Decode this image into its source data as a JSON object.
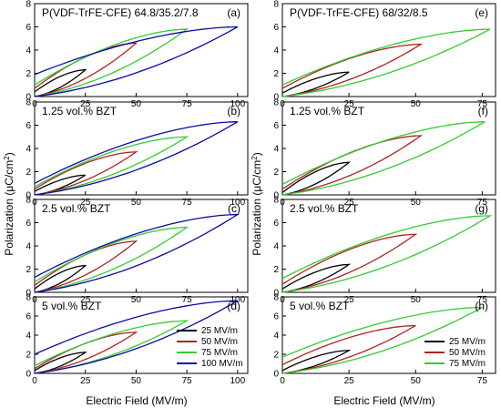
{
  "figure": {
    "ylabel": "Polarization (μC/cm²)",
    "xlabel": "Electric Field (MV/m)",
    "ylabel_html": "Polarization (μC/cm<tspan baseline-shift='super' font-size='8'>2</tspan>)"
  },
  "colors": {
    "25": "#000000",
    "50": "#b22222",
    "75": "#33cc33",
    "100": "#0a0aa8"
  },
  "chart_data": [
    {
      "type": "line",
      "label": "(a)",
      "title": "P(VDF-TrFE-CFE) 64.8/35.2/7.8",
      "xlim": [
        0,
        105
      ],
      "ylim": [
        0,
        8
      ],
      "xticks": [
        0,
        25,
        50,
        75,
        100
      ],
      "yticks": [
        0,
        2,
        4,
        6,
        8
      ],
      "series": [
        {
          "name": "25 MV/m",
          "field": 25,
          "pmax": 2.3,
          "pr": 0.4
        },
        {
          "name": "50 MV/m",
          "field": 50,
          "pmax": 4.6,
          "pr": 0.7
        },
        {
          "name": "75 MV/m",
          "field": 75,
          "pmax": 5.8,
          "pr": 1.0
        },
        {
          "name": "100 MV/m",
          "field": 100,
          "pmax": 6.0,
          "pr": 1.9
        }
      ]
    },
    {
      "type": "line",
      "label": "(b)",
      "title": "1.25 vol.% BZT",
      "xlim": [
        0,
        105
      ],
      "ylim": [
        0,
        8
      ],
      "xticks": [
        0,
        25,
        50,
        75,
        100
      ],
      "yticks": [
        0,
        2,
        4,
        6,
        8
      ],
      "series": [
        {
          "name": "25 MV/m",
          "field": 25,
          "pmax": 1.7,
          "pr": 0.3
        },
        {
          "name": "50 MV/m",
          "field": 50,
          "pmax": 3.7,
          "pr": 0.5
        },
        {
          "name": "75 MV/m",
          "field": 75,
          "pmax": 5.0,
          "pr": 0.7
        },
        {
          "name": "100 MV/m",
          "field": 100,
          "pmax": 6.3,
          "pr": 1.0
        }
      ]
    },
    {
      "type": "line",
      "label": "(c)",
      "title": "2.5 vol.% BZT",
      "xlim": [
        0,
        105
      ],
      "ylim": [
        0,
        8
      ],
      "xticks": [
        0,
        25,
        50,
        75,
        100
      ],
      "yticks": [
        0,
        2,
        4,
        6,
        8
      ],
      "series": [
        {
          "name": "25 MV/m",
          "field": 25,
          "pmax": 2.3,
          "pr": 0.3
        },
        {
          "name": "50 MV/m",
          "field": 50,
          "pmax": 4.4,
          "pr": 0.6
        },
        {
          "name": "75 MV/m",
          "field": 75,
          "pmax": 5.6,
          "pr": 0.9
        },
        {
          "name": "100 MV/m",
          "field": 100,
          "pmax": 6.7,
          "pr": 1.3
        }
      ]
    },
    {
      "type": "line",
      "label": "(d)",
      "title": "5 vol.% BZT",
      "xlim": [
        0,
        105
      ],
      "ylim": [
        0,
        8
      ],
      "xticks": [
        0,
        25,
        50,
        75,
        100
      ],
      "yticks": [
        0,
        2,
        4,
        6,
        8
      ],
      "legend": "bottom-right",
      "series": [
        {
          "name": "25 MV/m",
          "field": 25,
          "pmax": 2.2,
          "pr": 0.3
        },
        {
          "name": "50 MV/m",
          "field": 50,
          "pmax": 4.3,
          "pr": 0.5
        },
        {
          "name": "75 MV/m",
          "field": 75,
          "pmax": 5.5,
          "pr": 0.8
        },
        {
          "name": "100 MV/m",
          "field": 100,
          "pmax": 7.6,
          "pr": 2.0
        }
      ]
    },
    {
      "type": "line",
      "label": "(e)",
      "title": "P(VDF-TrFE-CFE) 68/32/8.5",
      "xlim": [
        0,
        80
      ],
      "ylim": [
        0,
        8
      ],
      "xticks": [
        0,
        25,
        50,
        75
      ],
      "yticks": [
        0,
        2,
        4,
        6,
        8
      ],
      "series": [
        {
          "name": "25 MV/m",
          "field": 25,
          "pmax": 2.1,
          "pr": 0.3
        },
        {
          "name": "50 MV/m",
          "field": 52,
          "pmax": 4.5,
          "pr": 0.7
        },
        {
          "name": "75 MV/m",
          "field": 78,
          "pmax": 5.8,
          "pr": 1.0
        }
      ]
    },
    {
      "type": "line",
      "label": "(f)",
      "title": "1.25 vol.% BZT",
      "xlim": [
        0,
        80
      ],
      "ylim": [
        0,
        8
      ],
      "xticks": [
        0,
        25,
        50,
        75
      ],
      "yticks": [
        0,
        2,
        4,
        6,
        8
      ],
      "series": [
        {
          "name": "25 MV/m",
          "field": 25,
          "pmax": 2.8,
          "pr": 0.2
        },
        {
          "name": "50 MV/m",
          "field": 52,
          "pmax": 5.1,
          "pr": 0.5
        },
        {
          "name": "75 MV/m",
          "field": 76,
          "pmax": 6.3,
          "pr": 0.9
        }
      ]
    },
    {
      "type": "line",
      "label": "(g)",
      "title": "2.5 vol.% BZT",
      "xlim": [
        0,
        80
      ],
      "ylim": [
        0,
        8
      ],
      "xticks": [
        0,
        25,
        50,
        75
      ],
      "yticks": [
        0,
        2,
        4,
        6,
        8
      ],
      "series": [
        {
          "name": "25 MV/m",
          "field": 25,
          "pmax": 2.4,
          "pr": 0.3
        },
        {
          "name": "50 MV/m",
          "field": 50,
          "pmax": 5.0,
          "pr": 0.7
        },
        {
          "name": "75 MV/m",
          "field": 78,
          "pmax": 6.6,
          "pr": 1.2
        }
      ]
    },
    {
      "type": "line",
      "label": "(h)",
      "title": "5 vol.% BZT",
      "xlim": [
        0,
        80
      ],
      "ylim": [
        0,
        8
      ],
      "xticks": [
        0,
        25,
        50,
        75
      ],
      "yticks": [
        0,
        2,
        4,
        6,
        8
      ],
      "legend": "bottom-right",
      "series": [
        {
          "name": "25 MV/m",
          "field": 25,
          "pmax": 2.4,
          "pr": 0.3
        },
        {
          "name": "50 MV/m",
          "field": 50,
          "pmax": 5.0,
          "pr": 0.9
        },
        {
          "name": "75 MV/m",
          "field": 75,
          "pmax": 6.9,
          "pr": 1.7
        }
      ]
    }
  ]
}
